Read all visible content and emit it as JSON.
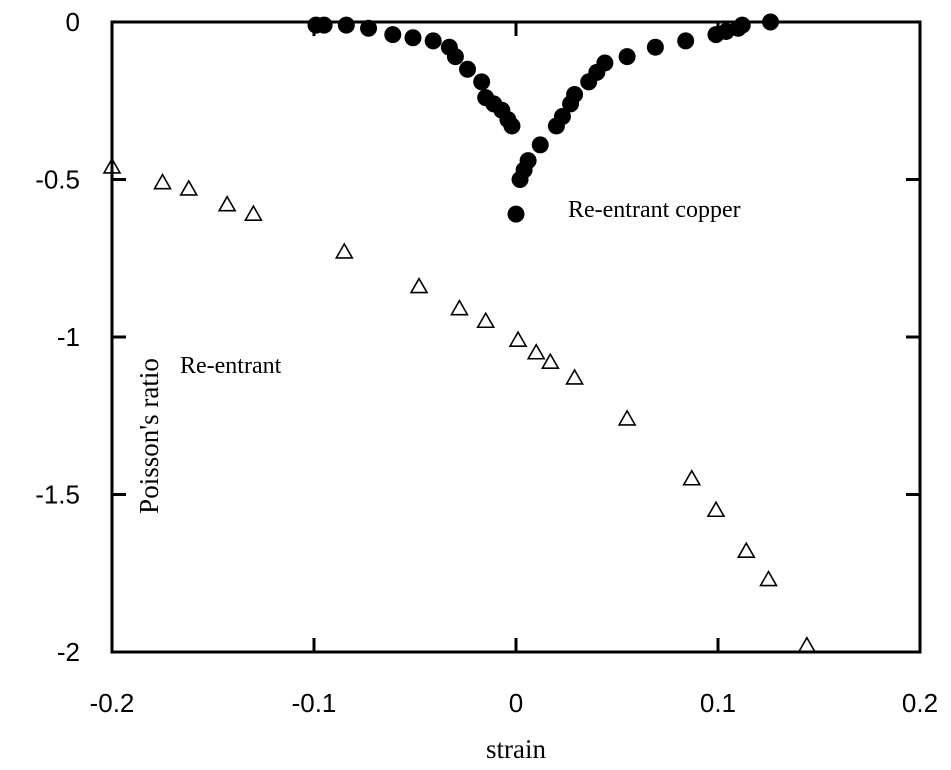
{
  "chart_data": {
    "type": "scatter",
    "xlabel": "strain",
    "ylabel": "Poisson's ratio",
    "xlim": [
      -0.2,
      0.2
    ],
    "ylim": [
      -2,
      0
    ],
    "xticks": [
      -0.2,
      -0.1,
      0,
      0.1,
      0.2
    ],
    "xtick_labels": [
      "-0.2",
      "-0.1",
      "0",
      "0.1",
      "0.2"
    ],
    "yticks": [
      0,
      -0.5,
      -1,
      -1.5,
      -2
    ],
    "ytick_labels": [
      "0",
      "-0.5",
      "-1",
      "-1.5",
      "-2"
    ],
    "grid": false,
    "series": [
      {
        "marker": "filled-circle",
        "color": "#000000",
        "points": [
          [
            -0.099,
            -0.01
          ],
          [
            -0.095,
            -0.01
          ],
          [
            -0.084,
            -0.01
          ],
          [
            -0.073,
            -0.02
          ],
          [
            -0.061,
            -0.04
          ],
          [
            -0.051,
            -0.05
          ],
          [
            -0.041,
            -0.06
          ],
          [
            -0.033,
            -0.08
          ],
          [
            -0.03,
            -0.11
          ],
          [
            -0.024,
            -0.15
          ],
          [
            -0.017,
            -0.19
          ],
          [
            -0.015,
            -0.24
          ],
          [
            -0.011,
            -0.26
          ],
          [
            -0.007,
            -0.28
          ],
          [
            -0.004,
            -0.31
          ],
          [
            -0.002,
            -0.33
          ],
          [
            0.0,
            -0.61
          ],
          [
            0.002,
            -0.5
          ],
          [
            0.004,
            -0.47
          ],
          [
            0.006,
            -0.44
          ],
          [
            0.012,
            -0.39
          ],
          [
            0.02,
            -0.33
          ],
          [
            0.023,
            -0.3
          ],
          [
            0.027,
            -0.26
          ],
          [
            0.029,
            -0.23
          ],
          [
            0.036,
            -0.19
          ],
          [
            0.04,
            -0.16
          ],
          [
            0.044,
            -0.13
          ],
          [
            0.055,
            -0.11
          ],
          [
            0.069,
            -0.08
          ],
          [
            0.084,
            -0.06
          ],
          [
            0.099,
            -0.04
          ],
          [
            0.104,
            -0.03
          ],
          [
            0.11,
            -0.02
          ],
          [
            0.112,
            -0.01
          ],
          [
            0.126,
            0.0
          ]
        ]
      },
      {
        "marker": "open-triangle",
        "color": "#000000",
        "points": [
          [
            -0.2,
            -0.46
          ],
          [
            -0.175,
            -0.51
          ],
          [
            -0.162,
            -0.53
          ],
          [
            -0.143,
            -0.58
          ],
          [
            -0.13,
            -0.61
          ],
          [
            -0.085,
            -0.73
          ],
          [
            -0.048,
            -0.84
          ],
          [
            -0.028,
            -0.91
          ],
          [
            -0.015,
            -0.95
          ],
          [
            0.001,
            -1.01
          ],
          [
            0.01,
            -1.05
          ],
          [
            0.017,
            -1.08
          ],
          [
            0.029,
            -1.13
          ],
          [
            0.055,
            -1.26
          ],
          [
            0.087,
            -1.45
          ],
          [
            0.099,
            -1.55
          ],
          [
            0.114,
            -1.68
          ],
          [
            0.125,
            -1.77
          ],
          [
            0.144,
            -1.98
          ]
        ]
      }
    ],
    "annotations": [
      {
        "text": "Re-entrant copper"
      },
      {
        "text": "Re-entrant"
      }
    ]
  }
}
